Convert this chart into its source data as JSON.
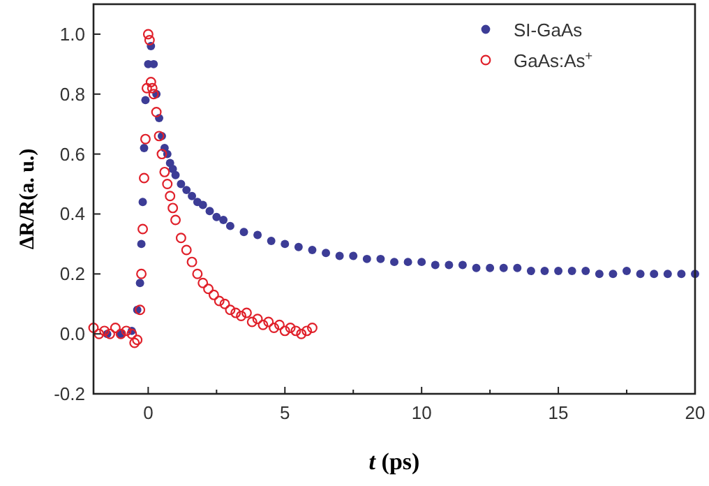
{
  "chart_data": {
    "type": "scatter",
    "xlabel": "t (ps)",
    "ylabel": "ΔR/R(a. u.)",
    "xlim": [
      -2,
      20
    ],
    "ylim": [
      -0.2,
      1.1
    ],
    "xticks": [
      0,
      {
        "value": 2.5,
        "label": null
      },
      5,
      {
        "value": 7.5,
        "label": null
      },
      10,
      {
        "value": 12.5,
        "label": null
      },
      15,
      {
        "value": 17.5,
        "label": null
      },
      20
    ],
    "yticks": [
      -0.2,
      {
        "value": 0,
        "label": "0.0"
      },
      0.2,
      0.4,
      0.6,
      0.8,
      {
        "value": 1,
        "label": "1.0"
      }
    ],
    "legend": "top right",
    "marker": "circle",
    "grid": false,
    "series": [
      {
        "name": "SI-GaAs",
        "color": "#3c3c96",
        "x": [
          -1.5,
          -1.0,
          -0.6,
          -0.4,
          -0.3,
          -0.25,
          -0.2,
          -0.15,
          -0.1,
          0.0,
          0.1,
          0.2,
          0.3,
          0.4,
          0.5,
          0.6,
          0.7,
          0.8,
          0.9,
          1.0,
          1.2,
          1.4,
          1.6,
          1.8,
          2.0,
          2.25,
          2.5,
          2.75,
          3.0,
          3.5,
          4.0,
          4.5,
          5.0,
          5.5,
          6.0,
          6.5,
          7.0,
          7.5,
          8.0,
          8.5,
          9.0,
          9.5,
          10,
          10.5,
          11,
          11.5,
          12,
          12.5,
          13,
          13.5,
          14,
          14.5,
          15,
          15.5,
          16,
          16.5,
          17,
          17.5,
          18,
          18.5,
          19,
          19.5,
          20
        ],
        "values": [
          0.0,
          0.0,
          0.01,
          0.08,
          0.17,
          0.3,
          0.44,
          0.62,
          0.78,
          0.9,
          0.96,
          0.9,
          0.8,
          0.72,
          0.66,
          0.62,
          0.6,
          0.57,
          0.55,
          0.53,
          0.5,
          0.48,
          0.46,
          0.44,
          0.43,
          0.41,
          0.39,
          0.38,
          0.36,
          0.34,
          0.33,
          0.31,
          0.3,
          0.29,
          0.28,
          0.27,
          0.26,
          0.26,
          0.25,
          0.25,
          0.24,
          0.24,
          0.24,
          0.23,
          0.23,
          0.23,
          0.22,
          0.22,
          0.22,
          0.22,
          0.21,
          0.21,
          0.21,
          0.21,
          0.21,
          0.2,
          0.2,
          0.21,
          0.2,
          0.2,
          0.2,
          0.2,
          0.2
        ]
      },
      {
        "name": "GaAs:As$^{+}$",
        "color": "#e0202a",
        "x": [
          -2.0,
          -1.8,
          -1.6,
          -1.4,
          -1.2,
          -1.0,
          -0.8,
          -0.6,
          -0.5,
          -0.4,
          -0.3,
          -0.25,
          -0.2,
          -0.15,
          -0.1,
          -0.05,
          0.0,
          0.05,
          0.1,
          0.15,
          0.2,
          0.3,
          0.4,
          0.5,
          0.6,
          0.7,
          0.8,
          0.9,
          1.0,
          1.2,
          1.4,
          1.6,
          1.8,
          2.0,
          2.2,
          2.4,
          2.6,
          2.8,
          3.0,
          3.2,
          3.4,
          3.6,
          3.8,
          4.0,
          4.2,
          4.4,
          4.6,
          4.8,
          5.0,
          5.2,
          5.4,
          5.6,
          5.8,
          6.0
        ],
        "values": [
          0.02,
          0.0,
          0.01,
          0.0,
          0.02,
          0.0,
          0.01,
          0.0,
          -0.03,
          -0.02,
          0.08,
          0.2,
          0.35,
          0.52,
          0.65,
          0.82,
          1.0,
          0.98,
          0.84,
          0.82,
          0.8,
          0.74,
          0.66,
          0.6,
          0.54,
          0.5,
          0.46,
          0.42,
          0.38,
          0.32,
          0.28,
          0.24,
          0.2,
          0.17,
          0.15,
          0.13,
          0.11,
          0.1,
          0.08,
          0.07,
          0.06,
          0.07,
          0.04,
          0.05,
          0.03,
          0.04,
          0.02,
          0.03,
          0.01,
          0.02,
          0.01,
          0.0,
          0.01,
          0.02
        ]
      }
    ]
  }
}
